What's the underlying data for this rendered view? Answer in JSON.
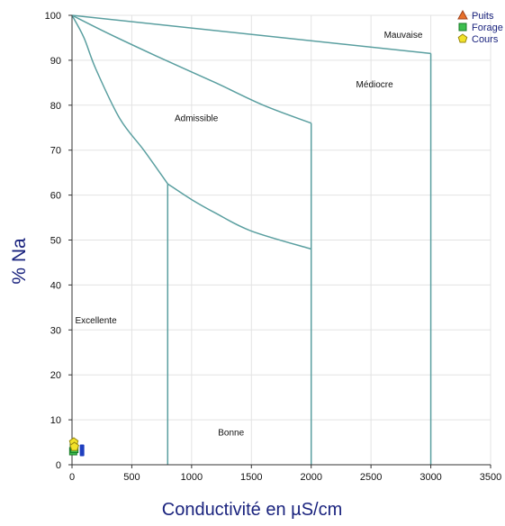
{
  "chart_data": {
    "type": "scatter",
    "xlabel": "Conductivité en µS/cm",
    "ylabel": "% Na",
    "xlim": [
      0,
      3500
    ],
    "ylim": [
      0,
      100
    ],
    "xticks": [
      0,
      500,
      1000,
      1500,
      2000,
      2500,
      3000,
      3500
    ],
    "yticks": [
      0,
      10,
      20,
      30,
      40,
      50,
      60,
      70,
      80,
      90,
      100
    ],
    "grid": true,
    "legend_position": "top-right",
    "boundary_lines": [
      {
        "points": [
          [
            0,
            100
          ],
          [
            3000,
            91.5
          ]
        ]
      },
      {
        "points": [
          [
            3000,
            91.5
          ],
          [
            3000,
            0
          ]
        ]
      },
      {
        "points": [
          [
            0,
            100
          ],
          [
            300,
            96
          ],
          [
            700,
            91
          ],
          [
            1200,
            85
          ],
          [
            1600,
            80
          ],
          [
            2000,
            76
          ]
        ]
      },
      {
        "points": [
          [
            2000,
            76
          ],
          [
            2000,
            0
          ]
        ]
      },
      {
        "points": [
          [
            0,
            100
          ],
          [
            100,
            95
          ],
          [
            200,
            88
          ],
          [
            400,
            77
          ],
          [
            600,
            70
          ],
          [
            800,
            62.5
          ]
        ]
      },
      {
        "points": [
          [
            800,
            62.5
          ],
          [
            1000,
            59
          ],
          [
            1200,
            56
          ],
          [
            1500,
            52
          ],
          [
            2000,
            48
          ]
        ]
      },
      {
        "points": [
          [
            800,
            62.5
          ],
          [
            800,
            0
          ]
        ]
      }
    ],
    "zone_labels": [
      {
        "text": "Mauvaise",
        "x": 2770,
        "y": 95
      },
      {
        "text": "Médiocre",
        "x": 2530,
        "y": 84
      },
      {
        "text": "Admissible",
        "x": 1040,
        "y": 76.5
      },
      {
        "text": "Excellente",
        "x": 200,
        "y": 31.5
      },
      {
        "text": "Bonne",
        "x": 1330,
        "y": 6.5
      }
    ],
    "series": [
      {
        "name": "Puits",
        "marker": "triangle",
        "color": "#e8702a",
        "stroke": "#a0401a",
        "points": []
      },
      {
        "name": "Forage",
        "marker": "square",
        "color": "#3dbf4f",
        "stroke": "#1a7a2a",
        "points": [
          [
            10,
            3
          ],
          [
            15,
            4
          ],
          [
            20,
            3.5
          ]
        ]
      },
      {
        "name": "Cours",
        "marker": "pentagon",
        "color": "#f2e22a",
        "stroke": "#9a8a10",
        "points": [
          [
            15,
            5
          ],
          [
            20,
            4
          ]
        ]
      }
    ],
    "extra_markers": [
      {
        "shape": "bar",
        "color": "#1f3fbf",
        "x": 80,
        "y": 2.5
      }
    ]
  },
  "colors": {
    "boundary": "#5a9fa0",
    "grid": "#e3e3e3",
    "axis_title": "#1a237e"
  }
}
